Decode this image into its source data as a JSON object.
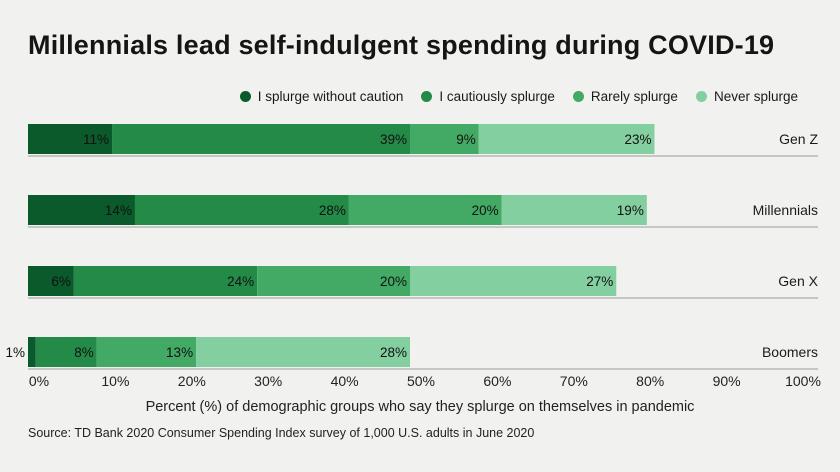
{
  "chart_data": {
    "type": "bar",
    "orientation": "horizontal",
    "stacked": true,
    "title": "Millennials lead self-indulgent spending during COVID-19",
    "xlabel": "Percent (%) of demographic groups who say they splurge on themselves in pandemic",
    "source": "Source: TD Bank 2020 Consumer Spending Index survey of 1,000 U.S. adults in June 2020",
    "xlim": [
      0,
      100
    ],
    "xticks": [
      "0%",
      "10%",
      "20%",
      "30%",
      "40%",
      "50%",
      "60%",
      "70%",
      "80%",
      "90%",
      "100%"
    ],
    "categories": [
      "Gen Z",
      "Millennials",
      "Gen X",
      "Boomers"
    ],
    "series": [
      {
        "name": "I splurge without caution",
        "color": "#0b5a2c",
        "values": [
          11,
          14,
          6,
          1
        ],
        "labels": [
          "11%",
          "14%",
          "6%",
          "1%"
        ]
      },
      {
        "name": "I cautiously splurge",
        "color": "#248a48",
        "values": [
          39,
          28,
          24,
          8
        ],
        "labels": [
          "39%",
          "28%",
          "24%",
          "8%"
        ]
      },
      {
        "name": "Rarely splurge",
        "color": "#43aa65",
        "values": [
          9,
          20,
          20,
          13
        ],
        "labels": [
          "9%",
          "20%",
          "20%",
          "13%"
        ]
      },
      {
        "name": "Never splurge",
        "color": "#84cfa0",
        "values": [
          23,
          19,
          27,
          28
        ],
        "labels": [
          "23%",
          "19%",
          "27%",
          "28%"
        ]
      }
    ],
    "legend_position": "top-right",
    "grid": false
  }
}
